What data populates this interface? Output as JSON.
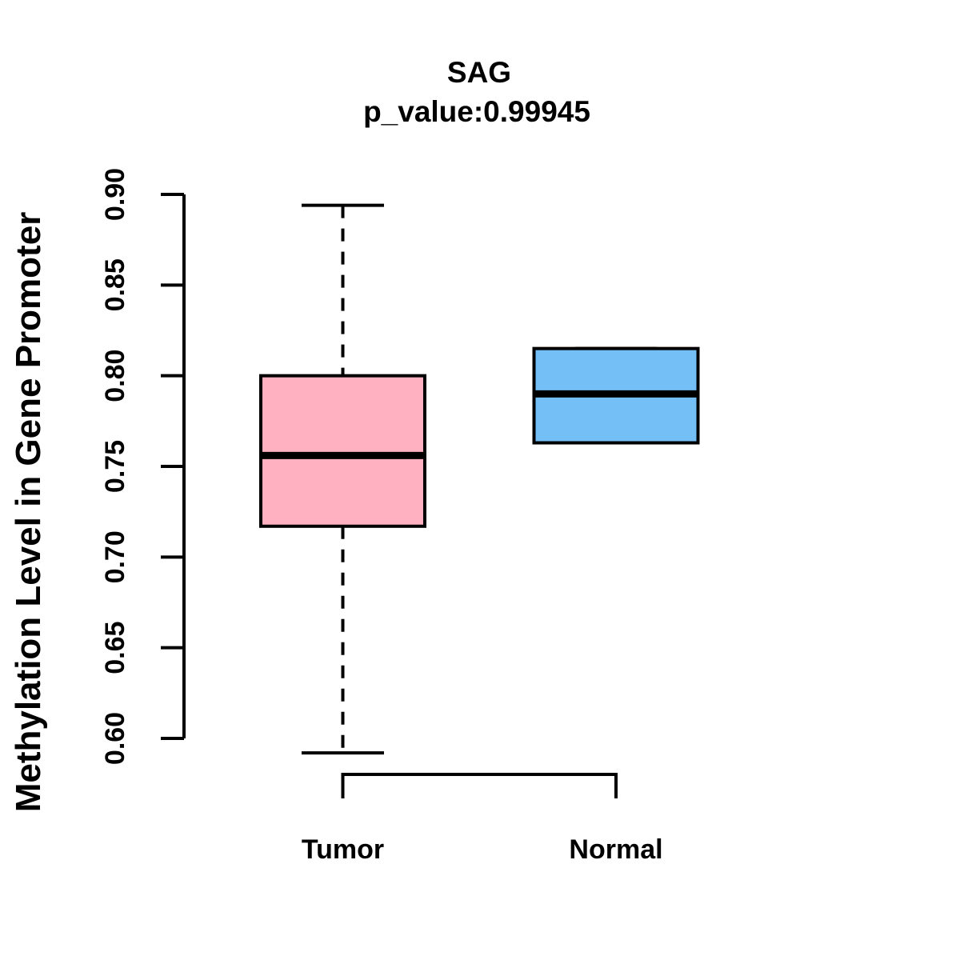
{
  "chart_data": {
    "type": "boxplot",
    "title": "SAG",
    "subtitle": "p_value:0.99945",
    "ylabel": "Methylation Level in Gene Promoter",
    "xlabel": "",
    "categories": [
      "Tumor",
      "Normal"
    ],
    "ylim": [
      0.6,
      0.9
    ],
    "yticks": [
      0.6,
      0.65,
      0.7,
      0.75,
      0.8,
      0.85,
      0.9
    ],
    "ytick_labels": [
      "0.60",
      "0.65",
      "0.70",
      "0.75",
      "0.80",
      "0.85",
      "0.90"
    ],
    "grid": false,
    "legend": null,
    "series": [
      {
        "name": "Tumor",
        "whisker_low": 0.592,
        "q1": 0.717,
        "median": 0.756,
        "q3": 0.8,
        "whisker_high": 0.894,
        "fill": "#FFB1C1"
      },
      {
        "name": "Normal",
        "whisker_low": 0.763,
        "q1": 0.763,
        "median": 0.79,
        "q3": 0.815,
        "whisker_high": 0.815,
        "fill": "#74BFF6"
      }
    ],
    "colors": {
      "stroke": "#000000",
      "background": "#FFFFFF"
    }
  }
}
